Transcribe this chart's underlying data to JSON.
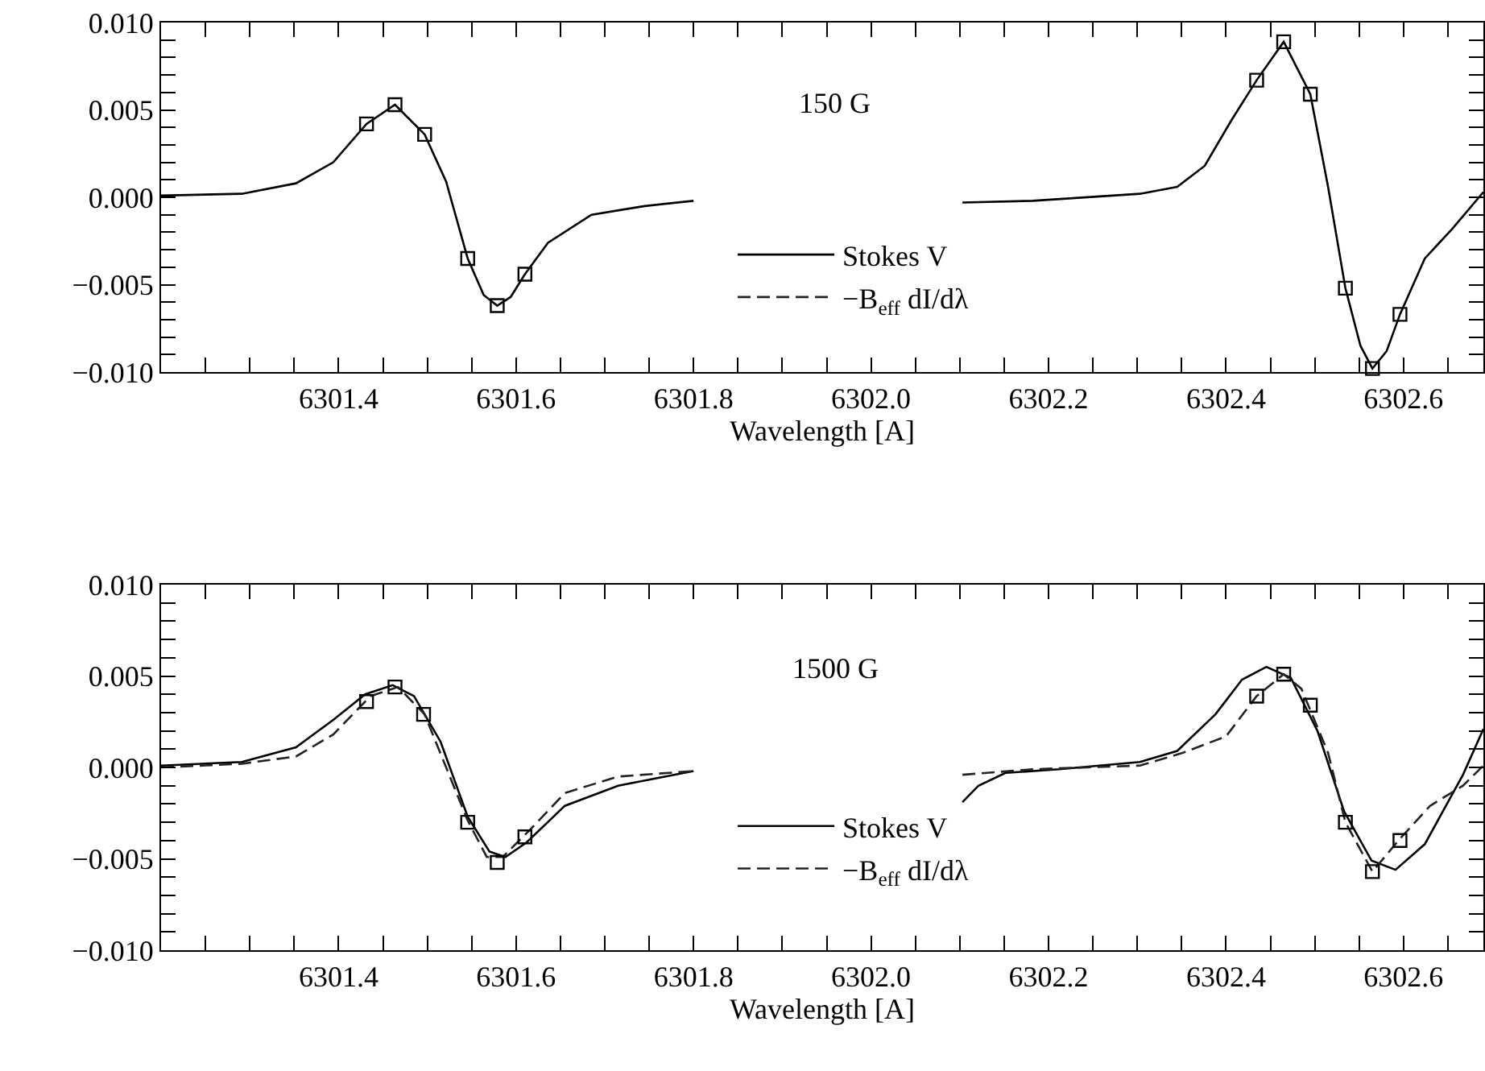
{
  "chart_data": [
    {
      "type": "line",
      "xlabel": "Wavelength [A]",
      "annotations": [
        "150 G"
      ],
      "legend": "bottom",
      "xlim": [
        6301.2,
        6302.69
      ],
      "ylim": [
        -0.01,
        0.01
      ],
      "xticks": [
        {
          "value": 6301.25,
          "label": null
        },
        {
          "value": 6301.3,
          "label": null
        },
        {
          "value": 6301.35,
          "label": null
        },
        6301.4,
        {
          "value": 6301.45,
          "label": null
        },
        {
          "value": 6301.5,
          "label": null
        },
        {
          "value": 6301.55,
          "label": null
        },
        6301.6,
        {
          "value": 6301.65,
          "label": null
        },
        {
          "value": 6301.7,
          "label": null
        },
        {
          "value": 6301.75,
          "label": null
        },
        6301.8,
        {
          "value": 6301.85,
          "label": null
        },
        {
          "value": 6301.9,
          "label": null
        },
        {
          "value": 6301.95,
          "label": null
        },
        {
          "value": 6302.0,
          "label": "6302.0"
        },
        {
          "value": 6302.05,
          "label": null
        },
        {
          "value": 6302.1,
          "label": null
        },
        {
          "value": 6302.15,
          "label": null
        },
        6302.2,
        {
          "value": 6302.25,
          "label": null
        },
        {
          "value": 6302.3,
          "label": null
        },
        {
          "value": 6302.35,
          "label": null
        },
        6302.4,
        {
          "value": 6302.45,
          "label": null
        },
        {
          "value": 6302.5,
          "label": null
        },
        {
          "value": 6302.55,
          "label": null
        },
        6302.6,
        {
          "value": 6302.65,
          "label": null
        }
      ],
      "yticks": [
        {
          "value": -0.01,
          "label": "−0.010"
        },
        {
          "value": -0.009,
          "label": null
        },
        {
          "value": -0.008,
          "label": null
        },
        {
          "value": -0.007,
          "label": null
        },
        {
          "value": -0.006,
          "label": null
        },
        {
          "value": -0.005,
          "label": "−0.005"
        },
        {
          "value": -0.004,
          "label": null
        },
        {
          "value": -0.003,
          "label": null
        },
        {
          "value": -0.002,
          "label": null
        },
        {
          "value": -0.001,
          "label": null
        },
        {
          "value": 0,
          "label": "0.000"
        },
        {
          "value": 0.001,
          "label": null
        },
        {
          "value": 0.002,
          "label": null
        },
        {
          "value": 0.003,
          "label": null
        },
        {
          "value": 0.004,
          "label": null
        },
        {
          "value": 0.005,
          "label": "0.005"
        },
        {
          "value": 0.006,
          "label": null
        },
        {
          "value": 0.007,
          "label": null
        },
        {
          "value": 0.008,
          "label": null
        },
        {
          "value": 0.009,
          "label": null
        },
        {
          "value": 0.01,
          "label": "0.010"
        }
      ],
      "series": [
        {
          "name": "Stokes V",
          "type": "line",
          "line_style": "solid",
          "marker": "none",
          "color": "#000000",
          "x": [
            6301.2,
            6301.291,
            6301.352,
            6301.394,
            6301.4315,
            6301.4636,
            6301.497,
            6301.5212,
            6301.5455,
            6301.5636,
            6301.5788,
            6301.594,
            6301.61,
            6301.636,
            6301.685,
            6301.745,
            6301.8,
            6301.95,
            6302.103,
            6302.182,
            6302.303,
            6302.345,
            6302.376,
            6302.406,
            6302.4345,
            6302.465,
            6302.495,
            6302.515,
            6302.5345,
            6302.5515,
            6302.565,
            6302.581,
            6302.596,
            6302.624,
            6302.655,
            6302.69
          ],
          "values": [
            0.0001,
            0.0002,
            0.0008,
            0.002,
            0.0042,
            0.0053,
            0.0036,
            0.0009,
            -0.0035,
            -0.0056,
            -0.0062,
            -0.0057,
            -0.0044,
            -0.0026,
            -0.001,
            -0.0005,
            -0.0002,
            null,
            -0.0003,
            -0.0002,
            0.0002,
            0.0006,
            0.0018,
            0.0044,
            0.0067,
            0.0089,
            0.0059,
            0.0006,
            -0.0052,
            -0.0085,
            -0.0098,
            -0.0088,
            -0.0067,
            -0.0035,
            -0.0018,
            0.0003
          ]
        },
        {
          "name": "−B$_{eff}$ dI/dλ",
          "type": "line",
          "line_style": "dashed",
          "marker": "none",
          "color": "#222222"
        },
        {
          "type": "scatter",
          "marker": "square",
          "color": "#000000",
          "x": [
            6301.4315,
            6301.4636,
            6301.497,
            6301.5455,
            6301.5788,
            6301.61,
            6302.4345,
            6302.465,
            6302.495,
            6302.5345,
            6302.565,
            6302.596
          ],
          "values": [
            0.0042,
            0.0053,
            0.0036,
            -0.0035,
            -0.0062,
            -0.0044,
            0.0067,
            0.0089,
            0.0059,
            -0.0052,
            -0.0098,
            -0.0067
          ]
        }
      ]
    },
    {
      "type": "line",
      "xlabel": "Wavelength [A]",
      "annotations": [
        "1500 G"
      ],
      "legend": "bottom",
      "xlim": [
        6301.2,
        6302.69
      ],
      "ylim": [
        -0.01,
        0.01
      ],
      "xticks": [
        {
          "value": 6301.25,
          "label": null
        },
        {
          "value": 6301.3,
          "label": null
        },
        {
          "value": 6301.35,
          "label": null
        },
        6301.4,
        {
          "value": 6301.45,
          "label": null
        },
        {
          "value": 6301.5,
          "label": null
        },
        {
          "value": 6301.55,
          "label": null
        },
        6301.6,
        {
          "value": 6301.65,
          "label": null
        },
        {
          "value": 6301.7,
          "label": null
        },
        {
          "value": 6301.75,
          "label": null
        },
        6301.8,
        {
          "value": 6301.85,
          "label": null
        },
        {
          "value": 6301.9,
          "label": null
        },
        {
          "value": 6301.95,
          "label": null
        },
        {
          "value": 6302.0,
          "label": "6302.0"
        },
        {
          "value": 6302.05,
          "label": null
        },
        {
          "value": 6302.1,
          "label": null
        },
        {
          "value": 6302.15,
          "label": null
        },
        6302.2,
        {
          "value": 6302.25,
          "label": null
        },
        {
          "value": 6302.3,
          "label": null
        },
        {
          "value": 6302.35,
          "label": null
        },
        6302.4,
        {
          "value": 6302.45,
          "label": null
        },
        {
          "value": 6302.5,
          "label": null
        },
        {
          "value": 6302.55,
          "label": null
        },
        6302.6,
        {
          "value": 6302.65,
          "label": null
        }
      ],
      "yticks": [
        {
          "value": -0.01,
          "label": "−0.010"
        },
        {
          "value": -0.009,
          "label": null
        },
        {
          "value": -0.008,
          "label": null
        },
        {
          "value": -0.007,
          "label": null
        },
        {
          "value": -0.006,
          "label": null
        },
        {
          "value": -0.005,
          "label": "−0.005"
        },
        {
          "value": -0.004,
          "label": null
        },
        {
          "value": -0.003,
          "label": null
        },
        {
          "value": -0.002,
          "label": null
        },
        {
          "value": -0.001,
          "label": null
        },
        {
          "value": 0,
          "label": "0.000"
        },
        {
          "value": 0.001,
          "label": null
        },
        {
          "value": 0.002,
          "label": null
        },
        {
          "value": 0.003,
          "label": null
        },
        {
          "value": 0.004,
          "label": null
        },
        {
          "value": 0.005,
          "label": "0.005"
        },
        {
          "value": 0.006,
          "label": null
        },
        {
          "value": 0.007,
          "label": null
        },
        {
          "value": 0.008,
          "label": null
        },
        {
          "value": 0.009,
          "label": null
        },
        {
          "value": 0.01,
          "label": "0.010"
        }
      ],
      "series": [
        {
          "name": "Stokes V",
          "type": "line",
          "line_style": "solid",
          "marker": "none",
          "color": "#000000",
          "x": [
            6301.2,
            6301.291,
            6301.352,
            6301.394,
            6301.43,
            6301.461,
            6301.485,
            6301.515,
            6301.5455,
            6301.57,
            6301.588,
            6301.612,
            6301.655,
            6301.715,
            6301.8,
            6301.95,
            6302.103,
            6302.121,
            6302.1515,
            6302.212,
            6302.303,
            6302.345,
            6302.388,
            6302.418,
            6302.4455,
            6302.473,
            6302.503,
            6302.533,
            6302.564,
            6302.591,
            6302.624,
            6302.667,
            6302.69
          ],
          "values": [
            0.0001,
            0.0003,
            0.0011,
            0.0026,
            0.004,
            0.0045,
            0.0039,
            0.0014,
            -0.0027,
            -0.0046,
            -0.0049,
            -0.0041,
            -0.0021,
            -0.001,
            -0.0002,
            null,
            -0.0019,
            -0.001,
            -0.0003,
            -0.0001,
            0.0003,
            0.0009,
            0.0029,
            0.0048,
            0.0055,
            0.0049,
            0.002,
            -0.0024,
            -0.0051,
            -0.0056,
            -0.0042,
            -0.0004,
            0.0021
          ]
        },
        {
          "name": "−B$_{eff}$ dI/dλ",
          "type": "line",
          "line_style": "dashed",
          "marker": "none",
          "color": "#222222",
          "x": [
            6301.2,
            6301.291,
            6301.352,
            6301.394,
            6301.436,
            6301.467,
            6301.497,
            6301.5455,
            6301.567,
            6301.585,
            6301.618,
            6301.655,
            6301.715,
            6301.8,
            6301.95,
            6302.103,
            6302.182,
            6302.303,
            6302.3515,
            6302.4,
            6302.4345,
            6302.465,
            6302.485,
            6302.515,
            6302.5345,
            6302.565,
            6302.596,
            6302.63,
            6302.667,
            6302.69
          ],
          "values": [
            0,
            0.0002,
            0.0006,
            0.0018,
            0.0039,
            0.0044,
            0.0029,
            -0.0029,
            -0.0049,
            -0.0049,
            -0.0033,
            -0.0014,
            -0.0005,
            -0.0002,
            null,
            -0.0004,
            -0.0001,
            0.0001,
            0.0008,
            0.0017,
            0.0039,
            0.0051,
            0.0043,
            0.0008,
            -0.003,
            -0.0057,
            -0.0039,
            -0.0021,
            -0.001,
            0.0001
          ]
        },
        {
          "type": "scatter",
          "marker": "square",
          "color": "#000000",
          "x": [
            6301.4315,
            6301.4636,
            6301.4958,
            6301.5455,
            6301.5788,
            6301.61,
            6302.4345,
            6302.465,
            6302.495,
            6302.5345,
            6302.565,
            6302.596
          ],
          "values": [
            0.0036,
            0.0044,
            0.0029,
            -0.003,
            -0.0052,
            -0.0038,
            0.0039,
            0.0051,
            0.0034,
            -0.003,
            -0.0057,
            -0.004
          ]
        }
      ]
    }
  ]
}
